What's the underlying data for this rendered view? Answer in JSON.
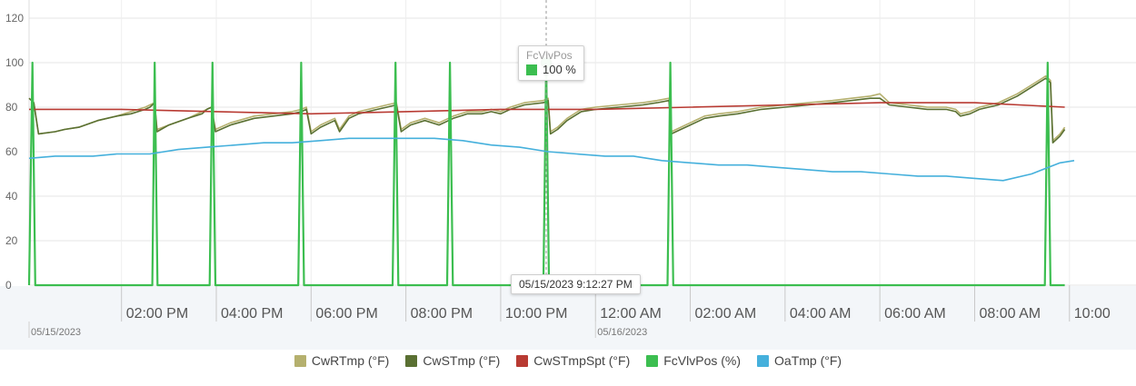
{
  "chart_data": {
    "type": "line",
    "title": "",
    "ylim": [
      0,
      120
    ],
    "yticks": [
      0,
      20,
      40,
      60,
      80,
      100,
      120
    ],
    "x_ticks": [
      "02:00 PM",
      "04:00 PM",
      "06:00 PM",
      "08:00 PM",
      "10:00 PM",
      "12:00 AM",
      "02:00 AM",
      "04:00 AM",
      "06:00 AM",
      "08:00 AM",
      "10:00"
    ],
    "date_labels": [
      "05/15/2023",
      "05/16/2023"
    ],
    "grid": true,
    "legend_position": "bottom",
    "x_range_hours": [
      -1.95,
      20.1
    ],
    "series": [
      {
        "name": "CwRTmp (°F)",
        "color": "#b5b06e",
        "points": [
          [
            -1.95,
            84
          ],
          [
            -1.85,
            82
          ],
          [
            -1.75,
            68
          ],
          [
            -1.4,
            69
          ],
          [
            -1.2,
            70
          ],
          [
            -0.9,
            71
          ],
          [
            -0.5,
            74
          ],
          [
            -0.1,
            76
          ],
          [
            0.2,
            78
          ],
          [
            0.5,
            80
          ],
          [
            0.6,
            81
          ],
          [
            0.7,
            82
          ],
          [
            0.75,
            70
          ],
          [
            1.0,
            72
          ],
          [
            1.4,
            75
          ],
          [
            1.7,
            78
          ],
          [
            1.8,
            79
          ],
          [
            1.9,
            80
          ],
          [
            1.98,
            70
          ],
          [
            2.3,
            73
          ],
          [
            2.8,
            76
          ],
          [
            3.2,
            77
          ],
          [
            3.6,
            78
          ],
          [
            3.8,
            79
          ],
          [
            3.9,
            80
          ],
          [
            4.0,
            69
          ],
          [
            4.2,
            72
          ],
          [
            4.5,
            75
          ],
          [
            4.6,
            70
          ],
          [
            4.8,
            76
          ],
          [
            5.0,
            78
          ],
          [
            5.4,
            80
          ],
          [
            5.6,
            81
          ],
          [
            5.8,
            82
          ],
          [
            5.9,
            70
          ],
          [
            6.1,
            73
          ],
          [
            6.4,
            75
          ],
          [
            6.7,
            73
          ],
          [
            7.0,
            76
          ],
          [
            7.3,
            78
          ],
          [
            7.6,
            78
          ],
          [
            7.8,
            79
          ],
          [
            8.0,
            78
          ],
          [
            8.2,
            80
          ],
          [
            8.5,
            82
          ],
          [
            8.9,
            83
          ],
          [
            9.0,
            84
          ],
          [
            9.05,
            69
          ],
          [
            9.2,
            71
          ],
          [
            9.4,
            75
          ],
          [
            9.7,
            79
          ],
          [
            10.0,
            80
          ],
          [
            10.5,
            81
          ],
          [
            11.0,
            82
          ],
          [
            11.3,
            83
          ],
          [
            11.55,
            84
          ],
          [
            11.6,
            69
          ],
          [
            11.8,
            71
          ],
          [
            12.0,
            73
          ],
          [
            12.3,
            76
          ],
          [
            12.6,
            77
          ],
          [
            13.0,
            78
          ],
          [
            13.5,
            80
          ],
          [
            14.0,
            81
          ],
          [
            14.5,
            82
          ],
          [
            15.0,
            83
          ],
          [
            15.4,
            84
          ],
          [
            15.8,
            85
          ],
          [
            16.0,
            86
          ],
          [
            16.2,
            82
          ],
          [
            16.6,
            81
          ],
          [
            17.0,
            80
          ],
          [
            17.4,
            80
          ],
          [
            17.6,
            79
          ],
          [
            17.7,
            77
          ],
          [
            17.9,
            78
          ],
          [
            18.1,
            80
          ],
          [
            18.5,
            82
          ],
          [
            18.9,
            86
          ],
          [
            19.2,
            90
          ],
          [
            19.5,
            94
          ],
          [
            19.6,
            92
          ],
          [
            19.65,
            65
          ],
          [
            19.8,
            68
          ],
          [
            19.9,
            71
          ]
        ]
      },
      {
        "name": "CwSTmp (°F)",
        "color": "#5a7032",
        "points": [
          [
            -1.95,
            84
          ],
          [
            -1.85,
            82
          ],
          [
            -1.75,
            68
          ],
          [
            -1.4,
            69
          ],
          [
            -1.2,
            70
          ],
          [
            -0.9,
            71
          ],
          [
            -0.5,
            74
          ],
          [
            -0.1,
            76
          ],
          [
            0.2,
            77
          ],
          [
            0.5,
            79
          ],
          [
            0.6,
            80
          ],
          [
            0.7,
            82
          ],
          [
            0.75,
            69
          ],
          [
            1.0,
            72
          ],
          [
            1.4,
            75
          ],
          [
            1.7,
            77
          ],
          [
            1.8,
            79
          ],
          [
            1.9,
            80
          ],
          [
            1.98,
            69
          ],
          [
            2.3,
            72
          ],
          [
            2.8,
            75
          ],
          [
            3.2,
            76
          ],
          [
            3.6,
            77
          ],
          [
            3.8,
            78
          ],
          [
            3.9,
            79
          ],
          [
            4.0,
            68
          ],
          [
            4.2,
            71
          ],
          [
            4.5,
            74
          ],
          [
            4.6,
            69
          ],
          [
            4.8,
            75
          ],
          [
            5.0,
            77
          ],
          [
            5.4,
            79
          ],
          [
            5.6,
            80
          ],
          [
            5.8,
            81
          ],
          [
            5.9,
            69
          ],
          [
            6.1,
            72
          ],
          [
            6.4,
            74
          ],
          [
            6.7,
            72
          ],
          [
            7.0,
            75
          ],
          [
            7.3,
            77
          ],
          [
            7.6,
            77
          ],
          [
            7.8,
            78
          ],
          [
            8.0,
            77
          ],
          [
            8.2,
            79
          ],
          [
            8.5,
            81
          ],
          [
            8.9,
            82
          ],
          [
            9.0,
            83
          ],
          [
            9.05,
            68
          ],
          [
            9.2,
            70
          ],
          [
            9.4,
            74
          ],
          [
            9.7,
            78
          ],
          [
            10.0,
            79
          ],
          [
            10.5,
            80
          ],
          [
            11.0,
            81
          ],
          [
            11.3,
            82
          ],
          [
            11.55,
            83
          ],
          [
            11.6,
            68
          ],
          [
            11.8,
            70
          ],
          [
            12.0,
            72
          ],
          [
            12.3,
            75
          ],
          [
            12.6,
            76
          ],
          [
            13.0,
            77
          ],
          [
            13.5,
            79
          ],
          [
            14.0,
            80
          ],
          [
            14.5,
            81
          ],
          [
            15.0,
            82
          ],
          [
            15.4,
            83
          ],
          [
            15.8,
            84
          ],
          [
            16.0,
            84
          ],
          [
            16.2,
            81
          ],
          [
            16.6,
            80
          ],
          [
            17.0,
            79
          ],
          [
            17.4,
            79
          ],
          [
            17.6,
            78
          ],
          [
            17.7,
            76
          ],
          [
            17.9,
            77
          ],
          [
            18.1,
            79
          ],
          [
            18.5,
            81
          ],
          [
            18.9,
            85
          ],
          [
            19.2,
            89
          ],
          [
            19.5,
            93
          ],
          [
            19.6,
            91
          ],
          [
            19.65,
            64
          ],
          [
            19.8,
            67
          ],
          [
            19.9,
            70
          ]
        ]
      },
      {
        "name": "CwSTmpSpt (°F)",
        "color": "#b83a32",
        "points": [
          [
            -1.95,
            79
          ],
          [
            0,
            79
          ],
          [
            2,
            78
          ],
          [
            4,
            77
          ],
          [
            6,
            78
          ],
          [
            8,
            79
          ],
          [
            10,
            79
          ],
          [
            12,
            80
          ],
          [
            14,
            81
          ],
          [
            16,
            82
          ],
          [
            18,
            82
          ],
          [
            19.9,
            80
          ]
        ]
      },
      {
        "name": "FcVlvPos (%)",
        "color": "#3cbe50",
        "points": [
          [
            -1.95,
            0
          ],
          [
            -1.88,
            100
          ],
          [
            -1.82,
            0
          ],
          [
            0.65,
            0
          ],
          [
            0.7,
            100
          ],
          [
            0.76,
            0
          ],
          [
            1.86,
            0
          ],
          [
            1.92,
            100
          ],
          [
            1.98,
            0
          ],
          [
            3.73,
            0
          ],
          [
            3.79,
            100
          ],
          [
            3.85,
            0
          ],
          [
            5.72,
            0
          ],
          [
            5.78,
            100
          ],
          [
            5.84,
            0
          ],
          [
            6.87,
            0
          ],
          [
            6.93,
            100
          ],
          [
            6.99,
            0
          ],
          [
            8.9,
            0
          ],
          [
            8.96,
            100
          ],
          [
            9.02,
            0
          ],
          [
            11.52,
            0
          ],
          [
            11.58,
            100
          ],
          [
            11.64,
            0
          ],
          [
            19.48,
            0
          ],
          [
            19.54,
            100
          ],
          [
            19.6,
            0
          ],
          [
            19.9,
            0
          ]
        ]
      },
      {
        "name": "OaTmp (°F)",
        "color": "#45b0dc",
        "points": [
          [
            -1.95,
            57
          ],
          [
            -1.4,
            58
          ],
          [
            -0.6,
            58
          ],
          [
            -0.1,
            59
          ],
          [
            0.6,
            59
          ],
          [
            1.2,
            61
          ],
          [
            1.8,
            62
          ],
          [
            2.4,
            63
          ],
          [
            3.0,
            64
          ],
          [
            3.6,
            64
          ],
          [
            4.2,
            65
          ],
          [
            4.8,
            66
          ],
          [
            5.4,
            66
          ],
          [
            6.0,
            66
          ],
          [
            6.6,
            66
          ],
          [
            7.2,
            65
          ],
          [
            7.8,
            63
          ],
          [
            8.4,
            62
          ],
          [
            9.0,
            60
          ],
          [
            9.6,
            59
          ],
          [
            10.2,
            58
          ],
          [
            10.8,
            58
          ],
          [
            11.4,
            56
          ],
          [
            12.0,
            55
          ],
          [
            12.6,
            54
          ],
          [
            13.2,
            54
          ],
          [
            13.8,
            53
          ],
          [
            14.4,
            52
          ],
          [
            15.0,
            51
          ],
          [
            15.6,
            51
          ],
          [
            16.2,
            50
          ],
          [
            16.8,
            49
          ],
          [
            17.4,
            49
          ],
          [
            18.0,
            48
          ],
          [
            18.6,
            47
          ],
          [
            19.2,
            50
          ],
          [
            19.8,
            55
          ],
          [
            20.1,
            56
          ]
        ]
      }
    ],
    "hover": {
      "x_hours": 8.96,
      "series_name": "FcVlvPos",
      "value_text": "100 %",
      "value": 100,
      "timestamp": "05/15/2023 9:12:27 PM"
    }
  }
}
